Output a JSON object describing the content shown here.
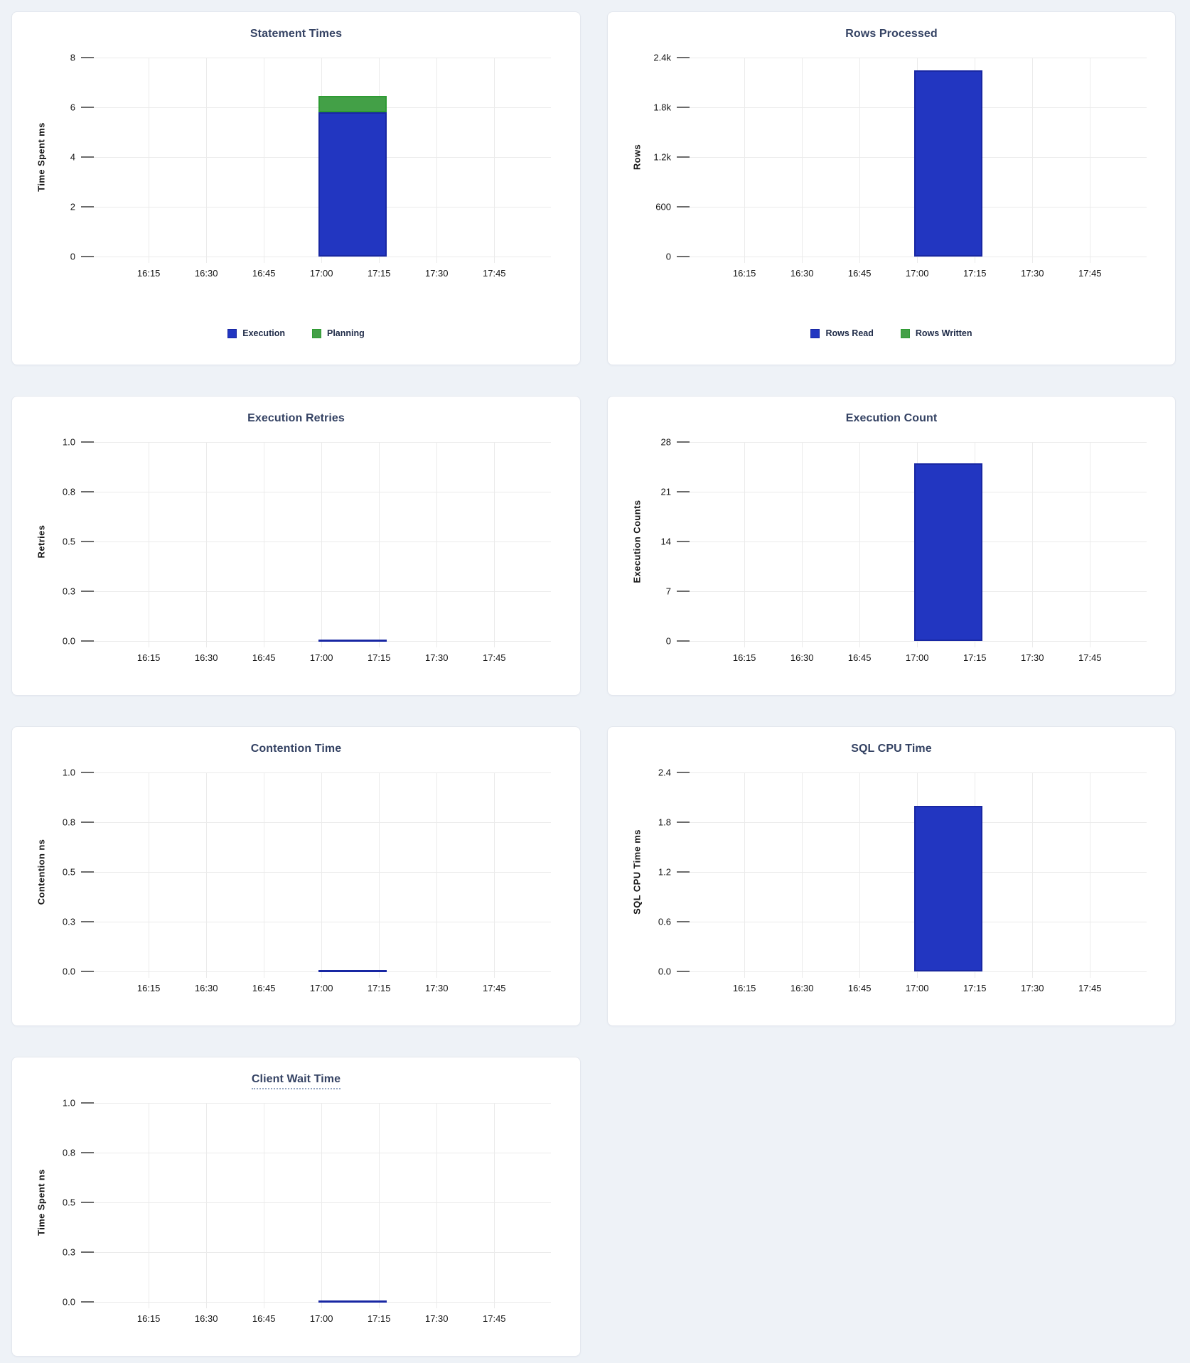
{
  "page": {
    "background": "#eef2f7"
  },
  "colors": {
    "page_bg": "#eef2f7",
    "card_background": "#ffffff",
    "card_border": "#e3e7ee",
    "title_text": "#344263",
    "axis_text": "#151515",
    "grid_line": "#ebebeb",
    "tick_mark": "#6b6b6b",
    "blue": "#2236c1",
    "blue_stroke": "#1827a3",
    "green": "#43a047",
    "green_stroke": "#2e9b33"
  },
  "x_ticks": [
    "16:15",
    "16:30",
    "16:45",
    "17:00",
    "17:15",
    "17:30",
    "17:45"
  ],
  "bar_window": {
    "from": "17:00",
    "to": "17:15"
  },
  "chart_data": [
    {
      "type": "bar",
      "title": "Statement Times",
      "ylabel": "Time Spent ms",
      "ymax": 8,
      "y_ticks": [
        "8",
        "6",
        "4",
        "2",
        "0"
      ],
      "grid": true,
      "legend_position": "bottom-center",
      "series": [
        {
          "name": "Execution",
          "color": "blue",
          "value": 5.8
        },
        {
          "name": "Planning",
          "color": "green",
          "value": 0.65
        }
      ],
      "legend": true
    },
    {
      "type": "bar",
      "title": "Rows Processed",
      "ylabel": "Rows",
      "ymax": 2400,
      "y_ticks": [
        "2.4k",
        "1.8k",
        "1.2k",
        "600",
        "0"
      ],
      "grid": true,
      "legend_position": "bottom-center",
      "series": [
        {
          "name": "Rows Read",
          "color": "blue",
          "value": 2250
        },
        {
          "name": "Rows Written",
          "color": "green",
          "value": 0
        }
      ],
      "legend": true
    },
    {
      "type": "bar",
      "title": "Execution Retries",
      "ylabel": "Retries",
      "ymax": 1,
      "y_ticks": [
        "1.0",
        "0.8",
        "0.5",
        "0.3",
        "0.0"
      ],
      "grid": true,
      "series": [
        {
          "name": "Retries",
          "color": "blue",
          "value": 0
        }
      ],
      "legend": false
    },
    {
      "type": "bar",
      "title": "Execution Count",
      "ylabel": "Execution Counts",
      "ymax": 28,
      "y_ticks": [
        "28",
        "21",
        "14",
        "7",
        "0"
      ],
      "grid": true,
      "series": [
        {
          "name": "Execution Count",
          "color": "blue",
          "value": 25
        }
      ],
      "legend": false
    },
    {
      "type": "bar",
      "title": "Contention Time",
      "ylabel": "Contention ns",
      "ymax": 1,
      "y_ticks": [
        "1.0",
        "0.8",
        "0.5",
        "0.3",
        "0.0"
      ],
      "grid": true,
      "series": [
        {
          "name": "Contention",
          "color": "blue",
          "value": 0
        }
      ],
      "legend": false
    },
    {
      "type": "bar",
      "title": "SQL CPU Time",
      "ylabel": "SQL CPU Time ms",
      "ymax": 2.4,
      "y_ticks": [
        "2.4",
        "1.8",
        "1.2",
        "0.6",
        "0.0"
      ],
      "grid": true,
      "series": [
        {
          "name": "SQL CPU Time",
          "color": "blue",
          "value": 2.0
        }
      ],
      "legend": false
    },
    {
      "type": "bar",
      "title": "Client Wait Time",
      "ylabel": "Time Spent ns",
      "ymax": 1,
      "y_ticks": [
        "1.0",
        "0.8",
        "0.5",
        "0.3",
        "0.0"
      ],
      "grid": true,
      "title_underlined": true,
      "series": [
        {
          "name": "Client Wait",
          "color": "blue",
          "value": 0
        }
      ],
      "legend": false
    }
  ]
}
